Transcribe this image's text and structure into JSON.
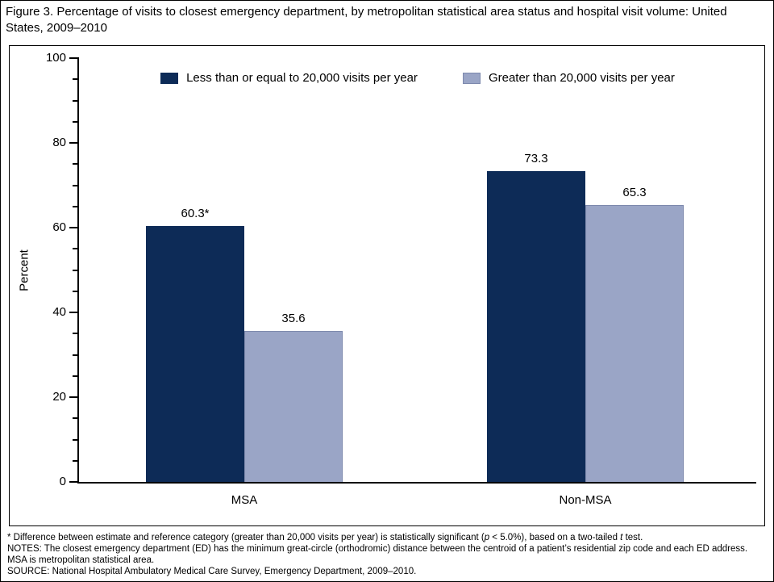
{
  "figure": {
    "title": "Figure 3. Percentage of visits to closest emergency department, by metropolitan statistical area status and hospital visit volume: United States, 2009–2010"
  },
  "chart_data": {
    "type": "bar",
    "title": "Percentage of visits to closest emergency department, by metropolitan statistical area status and hospital visit volume: United States, 2009–2010",
    "categories": [
      "MSA",
      "Non-MSA"
    ],
    "series": [
      {
        "name": "Less than or equal to 20,000 visits per year",
        "color": "#0d2b57",
        "values": [
          60.3,
          73.3
        ],
        "labels": [
          "60.3*",
          "73.3"
        ]
      },
      {
        "name": "Greater than 20,000 visits per year",
        "color": "#9aa5c6",
        "border": "#7d89ad",
        "values": [
          35.6,
          65.3
        ],
        "labels": [
          "35.6",
          "65.3"
        ]
      }
    ],
    "xlabel": "",
    "ylabel": "Percent",
    "ylim": [
      0,
      100
    ],
    "yticks": [
      0,
      20,
      40,
      60,
      80,
      100
    ],
    "minor_tick_step": 5,
    "grid": false,
    "legend_position": "top"
  },
  "footnotes": {
    "lines": [
      [
        {
          "text": "* Difference between estimate and reference category (greater than 20,000 visits per year) is statistically significant ("
        },
        {
          "text": "p",
          "italic": true
        },
        {
          "text": " < 5.0%), based on a two-tailed "
        },
        {
          "text": "t",
          "italic": true
        },
        {
          "text": " test."
        }
      ],
      [
        {
          "text": "NOTES: The closest emergency department (ED) has the minimum great-circle (orthodromic) distance between the centroid of a patient’s residential zip code and each ED address. MSA is metropolitan statistical area."
        }
      ],
      [
        {
          "text": "SOURCE: National Hospital Ambulatory Medical Care Survey, Emergency Department, 2009–2010."
        }
      ]
    ]
  }
}
